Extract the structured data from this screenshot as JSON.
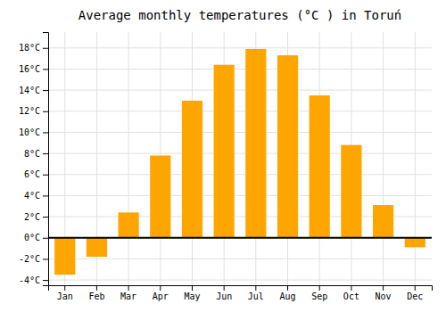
{
  "chart_data": {
    "type": "bar",
    "title": "Average monthly temperatures (°C ) in Toruń",
    "categories": [
      "Jan",
      "Feb",
      "Mar",
      "Apr",
      "May",
      "Jun",
      "Jul",
      "Aug",
      "Sep",
      "Oct",
      "Nov",
      "Dec"
    ],
    "values": [
      -3.5,
      -1.8,
      2.4,
      7.8,
      13.0,
      16.4,
      17.9,
      17.3,
      13.5,
      8.8,
      3.1,
      -0.9
    ],
    "color": "#FFA500",
    "ylim": [
      -4.5,
      19.5
    ],
    "yticks": [
      {
        "value": -4,
        "label": "-4°C"
      },
      {
        "value": -2,
        "label": "-2°C"
      },
      {
        "value": 0,
        "label": "0°C"
      },
      {
        "value": 2,
        "label": "2°C"
      },
      {
        "value": 4,
        "label": "4°C"
      },
      {
        "value": 6,
        "label": "6°C"
      },
      {
        "value": 8,
        "label": "8°C"
      },
      {
        "value": 10,
        "label": "10°C"
      },
      {
        "value": 12,
        "label": "12°C"
      },
      {
        "value": 14,
        "label": "14°C"
      },
      {
        "value": 16,
        "label": "16°C"
      },
      {
        "value": 18,
        "label": "18°C"
      }
    ],
    "grid": true
  }
}
